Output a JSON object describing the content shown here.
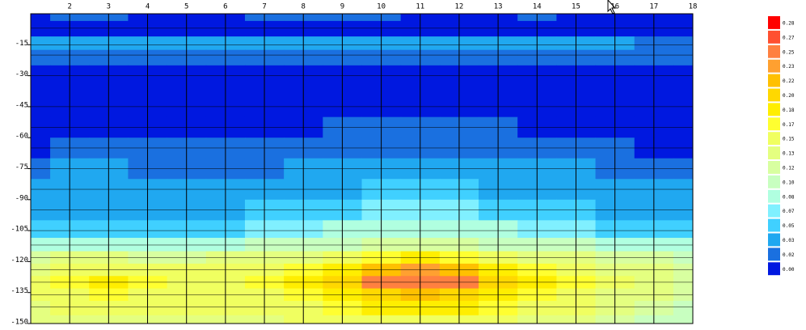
{
  "chart_data": {
    "type": "contour",
    "x": [
      1,
      2,
      3,
      4,
      5,
      6,
      7,
      8,
      9,
      10,
      11,
      12,
      13,
      14,
      15,
      16,
      17,
      18
    ],
    "y": [
      0,
      -7,
      -15,
      -20,
      -30,
      -45,
      -55,
      -65,
      -75,
      -85,
      -95,
      -105,
      -112,
      -118,
      -124,
      -130,
      -136,
      -142,
      -150
    ],
    "z": [
      [
        0.01,
        0.02,
        0.02,
        0.01,
        0.01,
        0.01,
        0.02,
        0.02,
        0.02,
        0.02,
        0.01,
        0.01,
        0.01,
        0.02,
        0.01,
        0.01,
        0.01,
        0.01
      ],
      [
        0.01,
        0.01,
        0.01,
        0.01,
        0.01,
        0.01,
        0.01,
        0.01,
        0.01,
        0.01,
        0.01,
        0.01,
        0.01,
        0.01,
        0.01,
        0.01,
        0.01,
        0.01
      ],
      [
        0.03,
        0.03,
        0.03,
        0.03,
        0.03,
        0.03,
        0.03,
        0.03,
        0.03,
        0.03,
        0.03,
        0.03,
        0.03,
        0.03,
        0.03,
        0.03,
        0.02,
        0.02
      ],
      [
        0.02,
        0.02,
        0.02,
        0.02,
        0.02,
        0.02,
        0.02,
        0.02,
        0.02,
        0.02,
        0.02,
        0.02,
        0.02,
        0.02,
        0.02,
        0.02,
        0.02,
        0.02
      ],
      [
        0.0,
        0.0,
        0.0,
        0.0,
        0.0,
        0.0,
        0.0,
        0.0,
        0.0,
        0.0,
        0.0,
        0.0,
        0.0,
        0.0,
        0.0,
        0.0,
        0.0,
        0.0
      ],
      [
        0.01,
        0.01,
        0.01,
        0.01,
        0.01,
        0.01,
        0.01,
        0.01,
        0.01,
        0.01,
        0.01,
        0.01,
        0.01,
        0.01,
        0.01,
        0.01,
        0.01,
        0.01
      ],
      [
        0.01,
        0.01,
        0.01,
        0.01,
        0.01,
        0.01,
        0.01,
        0.01,
        0.02,
        0.02,
        0.02,
        0.02,
        0.02,
        0.01,
        0.01,
        0.01,
        0.01,
        0.01
      ],
      [
        0.01,
        0.02,
        0.02,
        0.02,
        0.02,
        0.02,
        0.02,
        0.02,
        0.02,
        0.02,
        0.02,
        0.02,
        0.02,
        0.02,
        0.02,
        0.02,
        0.01,
        0.01
      ],
      [
        0.02,
        0.03,
        0.03,
        0.02,
        0.02,
        0.02,
        0.02,
        0.03,
        0.03,
        0.04,
        0.04,
        0.04,
        0.03,
        0.03,
        0.03,
        0.02,
        0.02,
        0.02
      ],
      [
        0.03,
        0.03,
        0.03,
        0.03,
        0.03,
        0.03,
        0.03,
        0.04,
        0.04,
        0.05,
        0.05,
        0.05,
        0.04,
        0.04,
        0.03,
        0.03,
        0.03,
        0.03
      ],
      [
        0.04,
        0.04,
        0.04,
        0.04,
        0.04,
        0.04,
        0.05,
        0.05,
        0.06,
        0.07,
        0.07,
        0.07,
        0.06,
        0.05,
        0.05,
        0.04,
        0.04,
        0.04
      ],
      [
        0.06,
        0.06,
        0.06,
        0.06,
        0.06,
        0.06,
        0.07,
        0.07,
        0.08,
        0.09,
        0.09,
        0.09,
        0.08,
        0.07,
        0.07,
        0.06,
        0.06,
        0.05
      ],
      [
        0.09,
        0.09,
        0.09,
        0.09,
        0.09,
        0.09,
        0.1,
        0.1,
        0.11,
        0.12,
        0.12,
        0.12,
        0.11,
        0.1,
        0.1,
        0.09,
        0.09,
        0.08
      ],
      [
        0.12,
        0.13,
        0.13,
        0.12,
        0.12,
        0.13,
        0.13,
        0.14,
        0.15,
        0.17,
        0.18,
        0.17,
        0.15,
        0.14,
        0.13,
        0.12,
        0.12,
        0.11
      ],
      [
        0.14,
        0.15,
        0.16,
        0.15,
        0.15,
        0.15,
        0.16,
        0.17,
        0.19,
        0.22,
        0.23,
        0.22,
        0.19,
        0.17,
        0.16,
        0.14,
        0.13,
        0.12
      ],
      [
        0.15,
        0.17,
        0.18,
        0.17,
        0.16,
        0.16,
        0.17,
        0.18,
        0.21,
        0.25,
        0.26,
        0.25,
        0.21,
        0.18,
        0.17,
        0.15,
        0.13,
        0.12
      ],
      [
        0.15,
        0.16,
        0.17,
        0.16,
        0.16,
        0.16,
        0.16,
        0.17,
        0.19,
        0.21,
        0.22,
        0.21,
        0.19,
        0.17,
        0.16,
        0.14,
        0.13,
        0.12
      ],
      [
        0.14,
        0.15,
        0.15,
        0.15,
        0.15,
        0.15,
        0.15,
        0.16,
        0.17,
        0.18,
        0.18,
        0.18,
        0.17,
        0.16,
        0.15,
        0.13,
        0.12,
        0.11
      ],
      [
        0.13,
        0.14,
        0.14,
        0.14,
        0.14,
        0.14,
        0.14,
        0.15,
        0.15,
        0.16,
        0.16,
        0.16,
        0.15,
        0.14,
        0.14,
        0.12,
        0.11,
        0.11
      ]
    ],
    "xlim": [
      1,
      18
    ],
    "xticks": [
      2,
      3,
      4,
      5,
      6,
      7,
      8,
      9,
      10,
      11,
      12,
      13,
      14,
      15,
      16,
      17,
      18
    ],
    "ylim": [
      -150,
      0
    ],
    "yticks": [
      -15,
      -30,
      -45,
      -60,
      -75,
      -90,
      -105,
      -120,
      -135,
      -150
    ],
    "levels": [
      {
        "value": 0.0,
        "label": "0.00",
        "color": "#0018e0"
      },
      {
        "value": 0.02,
        "label": "0.02",
        "color": "#1a70e0"
      },
      {
        "value": 0.03,
        "label": "0.03",
        "color": "#20a8f0"
      },
      {
        "value": 0.05,
        "label": "0.05",
        "color": "#40d0ff"
      },
      {
        "value": 0.07,
        "label": "0.07",
        "color": "#80f0ff"
      },
      {
        "value": 0.08,
        "label": "0.08",
        "color": "#b0ffe0"
      },
      {
        "value": 0.1,
        "label": "0.10",
        "color": "#c8ffc0"
      },
      {
        "value": 0.12,
        "label": "0.12",
        "color": "#d8ffa0"
      },
      {
        "value": 0.13,
        "label": "0.13",
        "color": "#e4ff80"
      },
      {
        "value": 0.15,
        "label": "0.15",
        "color": "#f0ff60"
      },
      {
        "value": 0.17,
        "label": "0.17",
        "color": "#ffff30"
      },
      {
        "value": 0.18,
        "label": "0.18",
        "color": "#ffee00"
      },
      {
        "value": 0.2,
        "label": "0.20",
        "color": "#ffd800"
      },
      {
        "value": 0.22,
        "label": "0.22",
        "color": "#ffc000"
      },
      {
        "value": 0.23,
        "label": "0.23",
        "color": "#ffa030"
      },
      {
        "value": 0.25,
        "label": "0.25",
        "color": "#ff8040"
      },
      {
        "value": 0.27,
        "label": "0.27",
        "color": "#ff5030"
      },
      {
        "value": 0.28,
        "label": "0.28",
        "color": "#ff0000"
      }
    ]
  }
}
